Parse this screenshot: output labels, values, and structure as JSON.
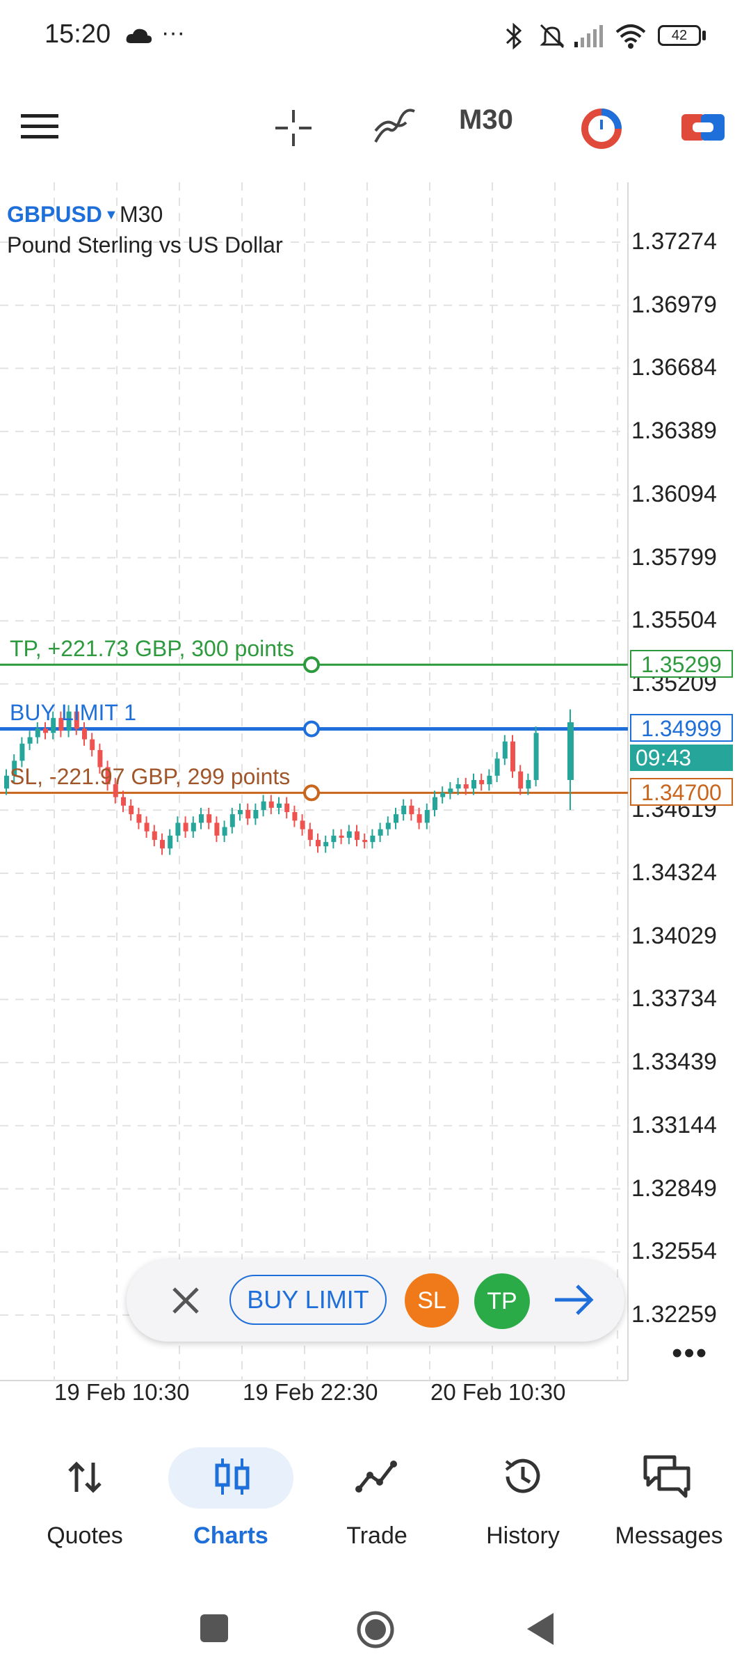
{
  "status_bar": {
    "time": "15:20",
    "icons": [
      "cloud-icon",
      "more-dots-icon",
      "bluetooth-icon",
      "mute-icon",
      "signal-icon",
      "wifi-icon",
      "battery-icon"
    ],
    "battery": "42"
  },
  "toolbar": {
    "menu_icon": "hamburger-menu-icon",
    "crosshair_icon": "crosshair-icon",
    "indicators_icon": "indicators-icon",
    "period": "M30",
    "trade_icon": "one-click-trading-icon",
    "toggle_icon": "toggle-icon"
  },
  "chart": {
    "symbol": "GBPUSD",
    "caret": "▼",
    "period": "M30",
    "description": "Pound Sterling vs US Dollar",
    "price_labels": [
      "1.37274",
      "1.36979",
      "1.36684",
      "1.36389",
      "1.36094",
      "1.35799",
      "1.35504",
      "1.35209",
      "1.34619",
      "1.34324",
      "1.34029",
      "1.33734",
      "1.33439",
      "1.33144",
      "1.32849",
      "1.32554",
      "1.32259"
    ],
    "time_labels": [
      "19 Feb 10:30",
      "19 Feb 22:30",
      "20 Feb 10:30"
    ],
    "tp_line": {
      "label": "TP, +221.73 GBP, 300 points",
      "price": "1.35299",
      "color": "#2e9a3e"
    },
    "order_line": {
      "label": "BUY LIMIT 1",
      "price": "1.34999",
      "color": "#1e6fd9"
    },
    "sl_line": {
      "label": "SL, -221.97 GBP, 299 points",
      "price": "1.34700",
      "color": "#c9651c"
    },
    "countdown": "09:43",
    "colors": {
      "bull": "#26a69a",
      "bear": "#ef5350",
      "grid": "#e2e2e2"
    }
  },
  "trade_pill": {
    "close_icon": "close-icon",
    "buy_limit": "BUY LIMIT",
    "sl": "SL",
    "tp": "TP",
    "next_icon": "arrow-right-icon",
    "more": "•••"
  },
  "bottom_nav": {
    "items": [
      {
        "label": "Quotes",
        "icon": "quotes-icon"
      },
      {
        "label": "Charts",
        "icon": "charts-icon"
      },
      {
        "label": "Trade",
        "icon": "trade-icon"
      },
      {
        "label": "History",
        "icon": "history-icon"
      },
      {
        "label": "Messages",
        "icon": "messages-icon"
      }
    ],
    "active": "Charts",
    "active_color": "#1e6fd9"
  },
  "system_nav": {
    "icons": [
      "recents-icon",
      "home-icon",
      "back-icon"
    ]
  }
}
